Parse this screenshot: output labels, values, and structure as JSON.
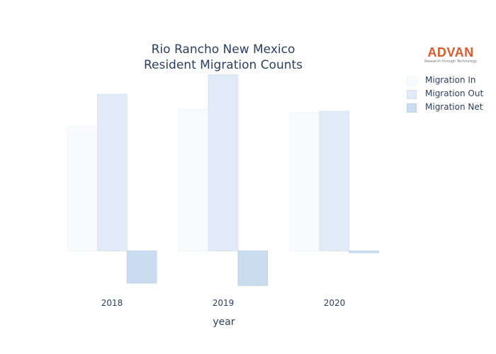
{
  "chart_data": {
    "type": "bar",
    "title_lines": [
      "Rio Rancho New Mexico",
      "Resident Migration Counts"
    ],
    "xlabel": "year",
    "ylabel": "",
    "categories": [
      "2018",
      "2019",
      "2020"
    ],
    "series": [
      {
        "name": "Migration In",
        "values": [
          2650,
          3020,
          2940
        ],
        "color": "#f8fafe",
        "stroke": "#eef2fa"
      },
      {
        "name": "Migration Out",
        "values": [
          3340,
          3760,
          2980
        ],
        "color": "#e0ebf7",
        "stroke": "#d4e2f3"
      },
      {
        "name": "Migration Net",
        "values": [
          -690,
          -740,
          -40
        ],
        "color": "#c9dcf0",
        "stroke": "#bcd2eb"
      }
    ],
    "ylim": [
      -840,
      3840
    ],
    "y_axis_ticks_visible": false,
    "grid": false,
    "legend_position": "top-right"
  },
  "logo": {
    "name": "ADVAN",
    "tagline": "Research through Technology"
  }
}
